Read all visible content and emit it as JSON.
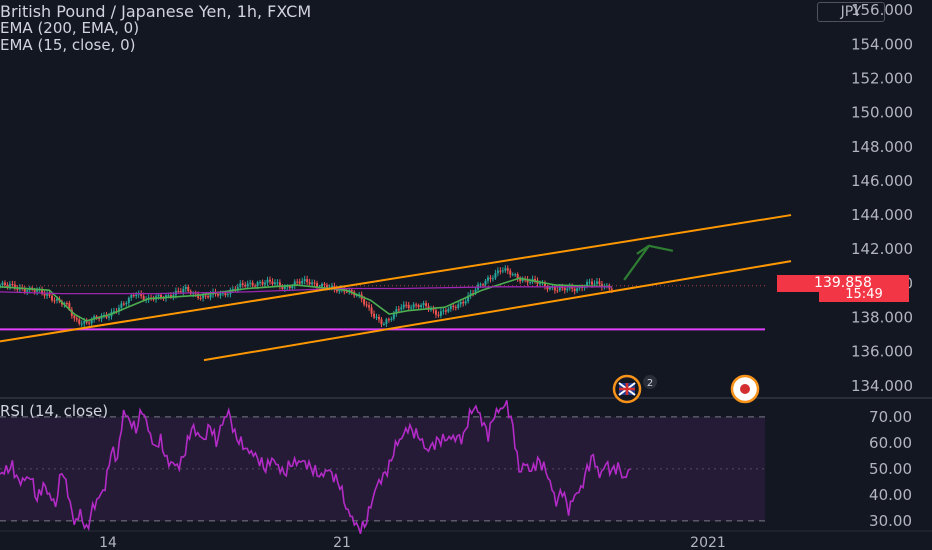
{
  "header": {
    "title": "British Pound / Japanese Yen, 1h, FXCM",
    "indicators": [
      "EMA (200, EMA, 0)",
      "EMA (15, close, 0)"
    ]
  },
  "price_axis": {
    "currency": "JPY",
    "ticks": [
      "156.000",
      "154.000",
      "152.000",
      "150.000",
      "148.000",
      "146.000",
      "144.000",
      "142.000",
      "140.000",
      "138.000",
      "136.000",
      "134.000"
    ],
    "last_price": "139.858",
    "countdown": "15:49"
  },
  "rsi": {
    "label": "RSI (14, close)",
    "ticks": [
      "70.00",
      "60.00",
      "50.00",
      "40.00",
      "30.00"
    ]
  },
  "time_axis": {
    "ticks": [
      "14",
      "21",
      "2021"
    ]
  },
  "events": {
    "uk_count": "2"
  },
  "colors": {
    "background": "#131722",
    "up": "#26a69a",
    "down": "#ef5350",
    "ema15": "#4caf50",
    "ema200": "#9c27b0",
    "channel": "#ff9800",
    "support": "#e040fb",
    "rsi_line": "#b32bc7",
    "rsi_band": "#2a1c3a",
    "arrow": "#2e7d32",
    "price_tag": "#f23645"
  },
  "chart_data": [
    {
      "type": "candlestick",
      "title": "British Pound / Japanese Yen, 1h, FXCM",
      "ylim": [
        133.4,
        156.6
      ],
      "x_ticks": [
        "14",
        "21",
        "2021"
      ],
      "last_price": 139.858,
      "price_path": [
        [
          0,
          139.9
        ],
        [
          4,
          139.7
        ],
        [
          8,
          139.3
        ],
        [
          11,
          138.6
        ],
        [
          12,
          137.9
        ],
        [
          14,
          137.7
        ],
        [
          17,
          138.1
        ],
        [
          20,
          138.7
        ],
        [
          22,
          139.5
        ],
        [
          24,
          139.0
        ],
        [
          27,
          139.3
        ],
        [
          30,
          139.6
        ],
        [
          33,
          139.2
        ],
        [
          36,
          139.4
        ],
        [
          38,
          139.7
        ],
        [
          40,
          139.9
        ],
        [
          42,
          140.1
        ],
        [
          44,
          140.0
        ],
        [
          46,
          139.8
        ],
        [
          48,
          140.0
        ],
        [
          50,
          140.1
        ],
        [
          52,
          139.9
        ],
        [
          54,
          139.6
        ],
        [
          56,
          139.7
        ],
        [
          58,
          139.2
        ],
        [
          60,
          138.4
        ],
        [
          62,
          137.6
        ],
        [
          63,
          137.8
        ],
        [
          65,
          138.8
        ],
        [
          67,
          138.6
        ],
        [
          69,
          138.7
        ],
        [
          71,
          138.2
        ],
        [
          73,
          138.5
        ],
        [
          75,
          139.0
        ],
        [
          77,
          139.6
        ],
        [
          79,
          140.3
        ],
        [
          81,
          140.8
        ],
        [
          83,
          140.5
        ],
        [
          85,
          140.2
        ],
        [
          87,
          140.0
        ],
        [
          89,
          139.8
        ],
        [
          91,
          139.6
        ],
        [
          93,
          139.7
        ],
        [
          95,
          140.0
        ],
        [
          97,
          139.9
        ],
        [
          99,
          139.8
        ]
      ],
      "series": [
        {
          "name": "EMA (15, close, 0)",
          "values": [
            [
              0,
              139.8
            ],
            [
              8,
              139.6
            ],
            [
              12,
              138.2
            ],
            [
              14,
              137.8
            ],
            [
              18,
              138.2
            ],
            [
              24,
              139.1
            ],
            [
              32,
              139.3
            ],
            [
              40,
              139.7
            ],
            [
              48,
              139.9
            ],
            [
              56,
              139.6
            ],
            [
              60,
              139.0
            ],
            [
              63,
              138.2
            ],
            [
              66,
              138.4
            ],
            [
              72,
              138.6
            ],
            [
              78,
              139.6
            ],
            [
              84,
              140.3
            ],
            [
              90,
              139.9
            ],
            [
              99,
              139.8
            ]
          ]
        },
        {
          "name": "EMA (200, EMA, 0)",
          "values": [
            [
              0,
              139.5
            ],
            [
              10,
              139.4
            ],
            [
              25,
              139.4
            ],
            [
              40,
              139.5
            ],
            [
              55,
              139.7
            ],
            [
              65,
              139.7
            ],
            [
              80,
              139.8
            ],
            [
              99,
              139.8
            ]
          ]
        }
      ],
      "annotations": {
        "channel_upper": [
          [
            0,
            136.6
          ],
          [
            128,
            144.0
          ]
        ],
        "channel_middle": [
          [
            33,
            135.5
          ],
          [
            98,
            137.6
          ]
        ],
        "channel_lower": [
          [
            33,
            135.5
          ],
          [
            128,
            141.3
          ]
        ],
        "support_level": 137.3,
        "arrow": {
          "from": [
            101,
            140.2
          ],
          "to": [
            105,
            142.2
          ]
        }
      }
    },
    {
      "type": "line",
      "title": "RSI (14, close)",
      "ylim": [
        26.5,
        76.5
      ],
      "y_ticks": [
        70,
        60,
        50,
        40,
        30
      ],
      "band": [
        30,
        70
      ],
      "values": [
        [
          0,
          48
        ],
        [
          2,
          51
        ],
        [
          3,
          45
        ],
        [
          5,
          47
        ],
        [
          6,
          38
        ],
        [
          7,
          44
        ],
        [
          9,
          36
        ],
        [
          10,
          50
        ],
        [
          11,
          41
        ],
        [
          12,
          29
        ],
        [
          13,
          33
        ],
        [
          14,
          26
        ],
        [
          15,
          35
        ],
        [
          17,
          43
        ],
        [
          18,
          57
        ],
        [
          19,
          54
        ],
        [
          20,
          72
        ],
        [
          22,
          65
        ],
        [
          23,
          73
        ],
        [
          25,
          58
        ],
        [
          26,
          61
        ],
        [
          27,
          53
        ],
        [
          29,
          51
        ],
        [
          30,
          57
        ],
        [
          31,
          66
        ],
        [
          33,
          61
        ],
        [
          34,
          67
        ],
        [
          35,
          60
        ],
        [
          36,
          68
        ],
        [
          37,
          72
        ],
        [
          38,
          63
        ],
        [
          40,
          57
        ],
        [
          41,
          56
        ],
        [
          43,
          50
        ],
        [
          44,
          54
        ],
        [
          46,
          48
        ],
        [
          47,
          52
        ],
        [
          49,
          53
        ],
        [
          51,
          49
        ],
        [
          52,
          47
        ],
        [
          53,
          50
        ],
        [
          55,
          44
        ],
        [
          56,
          35
        ],
        [
          57,
          31
        ],
        [
          58,
          27
        ],
        [
          59,
          28
        ],
        [
          60,
          36
        ],
        [
          61,
          44
        ],
        [
          62,
          47
        ],
        [
          63,
          51
        ],
        [
          64,
          59
        ],
        [
          65,
          62
        ],
        [
          66,
          66
        ],
        [
          68,
          62
        ],
        [
          69,
          57
        ],
        [
          70,
          59
        ],
        [
          71,
          61
        ],
        [
          73,
          62
        ],
        [
          75,
          62
        ],
        [
          76,
          71
        ],
        [
          77,
          74
        ],
        [
          79,
          63
        ],
        [
          80,
          71
        ],
        [
          81,
          73
        ],
        [
          82,
          75
        ],
        [
          83,
          66
        ],
        [
          84,
          49
        ],
        [
          85,
          52
        ],
        [
          86,
          49
        ],
        [
          87,
          53
        ],
        [
          88,
          51
        ],
        [
          89,
          45
        ],
        [
          90,
          37
        ],
        [
          91,
          42
        ],
        [
          92,
          34
        ],
        [
          93,
          40
        ],
        [
          94,
          42
        ],
        [
          95,
          50
        ],
        [
          96,
          55
        ],
        [
          97,
          47
        ],
        [
          98,
          52
        ],
        [
          99,
          49
        ],
        [
          100,
          51
        ],
        [
          101,
          46
        ],
        [
          102,
          50
        ]
      ]
    }
  ]
}
